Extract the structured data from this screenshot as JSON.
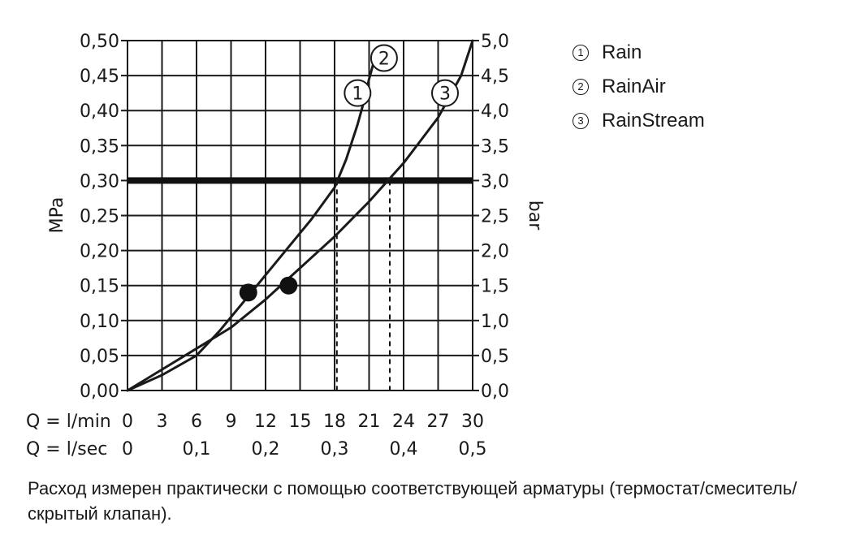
{
  "chart_data": {
    "type": "line",
    "y_left_label": "MPa",
    "y_right_label": "bar",
    "y_left_ticks": [
      "0,00",
      "0,05",
      "0,10",
      "0,15",
      "0,20",
      "0,25",
      "0,30",
      "0,35",
      "0,40",
      "0,45",
      "0,50"
    ],
    "y_right_ticks": [
      "0,0",
      "0,5",
      "1,0",
      "1,5",
      "2,0",
      "2,5",
      "3,0",
      "3,5",
      "4,0",
      "4,5",
      "5,0"
    ],
    "x_lmin_label": "Q = l/min",
    "x_lmin_ticks": [
      "0",
      "3",
      "6",
      "9",
      "12",
      "15",
      "18",
      "21",
      "24",
      "27",
      "30"
    ],
    "x_lsec_label": "Q = l/sec",
    "x_lsec_ticks": [
      "0",
      "0,1",
      "0,2",
      "0,3",
      "0,4",
      "0,5"
    ],
    "xlim": [
      0,
      30
    ],
    "ylim": [
      0,
      0.5
    ],
    "grid": true,
    "reference_line_mpa": 0.3,
    "series": [
      {
        "name": "Rain",
        "marker": "1",
        "x": [
          0,
          3,
          6,
          8,
          10,
          12,
          14,
          16,
          18,
          19,
          20,
          20.5
        ],
        "y": [
          0,
          0.022,
          0.05,
          0.085,
          0.125,
          0.165,
          0.205,
          0.245,
          0.29,
          0.33,
          0.38,
          0.41
        ]
      },
      {
        "name": "RainAir",
        "marker": "2",
        "x": [
          20.5,
          21,
          21.5
        ],
        "y": [
          0.41,
          0.445,
          0.475
        ]
      },
      {
        "name": "RainStream",
        "marker": "3",
        "x": [
          0,
          3,
          6,
          9,
          12,
          15,
          18,
          21,
          24,
          27,
          29,
          30
        ],
        "y": [
          0,
          0.03,
          0.06,
          0.09,
          0.13,
          0.175,
          0.22,
          0.27,
          0.325,
          0.39,
          0.45,
          0.5
        ]
      }
    ],
    "points": [
      {
        "x": 10.5,
        "y": 0.14
      },
      {
        "x": 14,
        "y": 0.15
      }
    ],
    "flow_at_reference": [
      18.2,
      22.8
    ]
  },
  "legend": [
    {
      "num": "1",
      "label": "Rain"
    },
    {
      "num": "2",
      "label": "RainAir"
    },
    {
      "num": "3",
      "label": "RainStream"
    }
  ],
  "note": "Расход измерен практически с помощью соответствующей арматуры (термостат/смеситель/скрытый клапан)."
}
